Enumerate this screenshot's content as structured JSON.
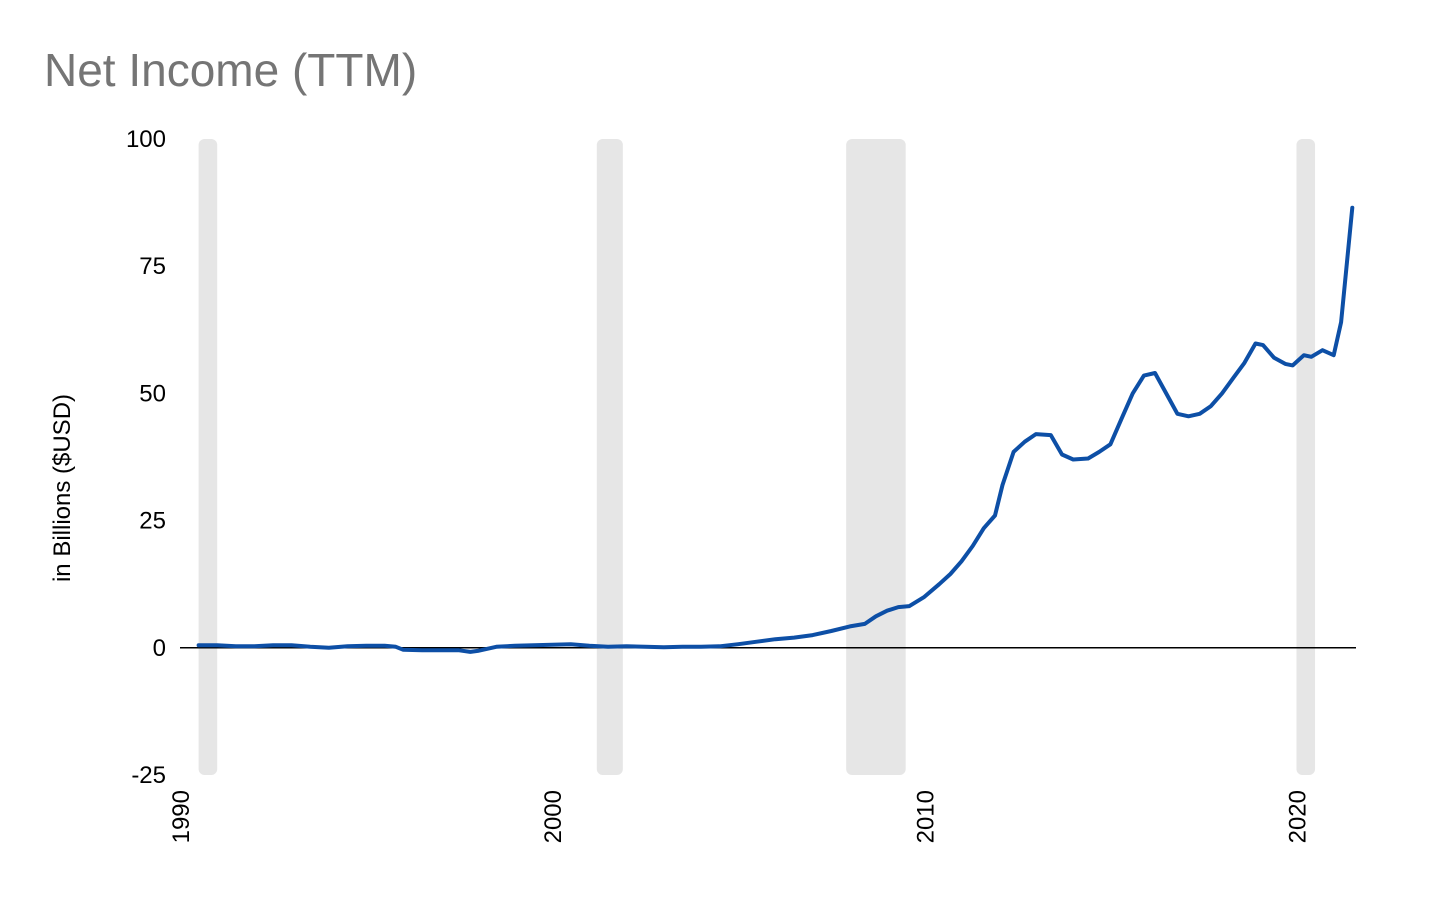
{
  "chart_data": {
    "type": "line",
    "title": "Net Income (TTM)",
    "xlabel": "",
    "ylabel": "in Billions ($USD)",
    "xlim": [
      1990,
      2021.6
    ],
    "ylim": [
      -25,
      100
    ],
    "y_ticks": [
      100,
      75,
      50,
      25,
      0,
      -25
    ],
    "x_ticks": [
      "1990",
      "2000",
      "2010",
      "2020"
    ],
    "grid": false,
    "legend": "none",
    "colors": {
      "line": "#0d4fa6",
      "recession": "#e6e6e6",
      "zero_line": "#000000",
      "title": "#757575"
    },
    "recessions": [
      {
        "start": 1990.5,
        "end": 1991.0
      },
      {
        "start": 2001.2,
        "end": 2001.9
      },
      {
        "start": 2007.9,
        "end": 2009.5
      },
      {
        "start": 2020.0,
        "end": 2020.5
      }
    ],
    "series": [
      {
        "x": [
          1990.5,
          1991.0,
          1991.5,
          1992.0,
          1992.5,
          1993.0,
          1993.5,
          1994.0,
          1994.5,
          1995.0,
          1995.5,
          1995.8,
          1996.0,
          1996.5,
          1997.0,
          1997.5,
          1997.8,
          1998.0,
          1998.5,
          1999.0,
          1999.5,
          2000.0,
          2000.5,
          2001.0,
          2001.5,
          2002.0,
          2002.5,
          2003.0,
          2003.5,
          2004.0,
          2004.5,
          2005.0,
          2005.5,
          2006.0,
          2006.5,
          2007.0,
          2007.5,
          2008.0,
          2008.4,
          2008.7,
          2009.0,
          2009.3,
          2009.6,
          2010.0,
          2010.4,
          2010.7,
          2011.0,
          2011.3,
          2011.6,
          2011.9,
          2012.1,
          2012.4,
          2012.7,
          2013.0,
          2013.4,
          2013.7,
          2014.0,
          2014.4,
          2014.7,
          2015.0,
          2015.3,
          2015.6,
          2015.9,
          2016.2,
          2016.5,
          2016.8,
          2017.1,
          2017.4,
          2017.7,
          2018.0,
          2018.3,
          2018.6,
          2018.9,
          2019.1,
          2019.4,
          2019.7,
          2019.9,
          2020.2,
          2020.4,
          2020.7,
          2021.0,
          2021.2,
          2021.5
        ],
        "y": [
          0.5,
          0.5,
          0.3,
          0.3,
          0.5,
          0.5,
          0.2,
          0.0,
          0.3,
          0.4,
          0.4,
          0.2,
          -0.4,
          -0.5,
          -0.5,
          -0.5,
          -0.8,
          -0.6,
          0.2,
          0.4,
          0.5,
          0.6,
          0.7,
          0.4,
          0.2,
          0.3,
          0.2,
          0.1,
          0.2,
          0.2,
          0.3,
          0.7,
          1.2,
          1.7,
          2.0,
          2.5,
          3.3,
          4.2,
          4.7,
          6.2,
          7.3,
          8.0,
          8.2,
          10.0,
          12.5,
          14.5,
          17.0,
          20.0,
          23.5,
          26.0,
          32.0,
          38.5,
          40.5,
          42.0,
          41.8,
          38.0,
          37.0,
          37.2,
          38.5,
          40.0,
          45.0,
          50.0,
          53.5,
          54.0,
          50.0,
          46.0,
          45.5,
          46.0,
          47.5,
          50.0,
          53.0,
          56.0,
          59.8,
          59.5,
          57.0,
          55.8,
          55.5,
          57.5,
          57.2,
          58.5,
          57.5,
          64.0,
          86.5
        ]
      }
    ]
  }
}
